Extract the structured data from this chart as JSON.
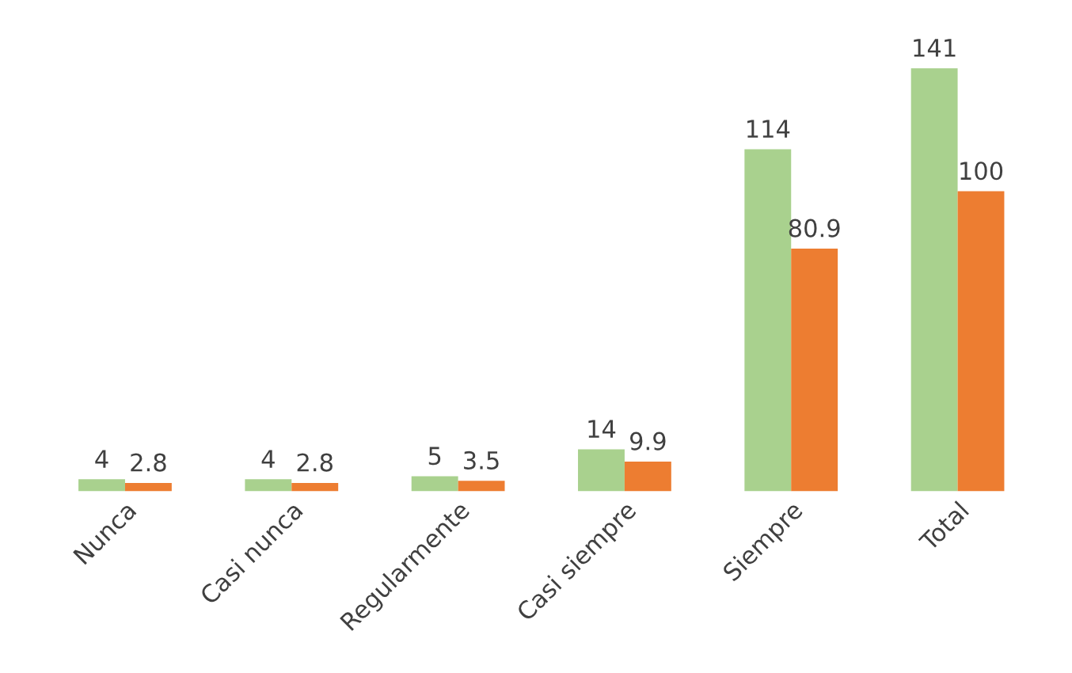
{
  "chart_data": {
    "type": "bar",
    "categories": [
      "Nunca",
      "Casi nunca",
      "Regularmente",
      "Casi siempre",
      "Siempre",
      "Total"
    ],
    "series": [
      {
        "color": "#a9d18e",
        "values": [
          4,
          4,
          5,
          14,
          114,
          141
        ]
      },
      {
        "color": "#ed7d31",
        "values": [
          2.8,
          2.8,
          3.5,
          9.9,
          80.9,
          100
        ]
      }
    ],
    "data_labels": true,
    "grid": false,
    "legend": false
  }
}
